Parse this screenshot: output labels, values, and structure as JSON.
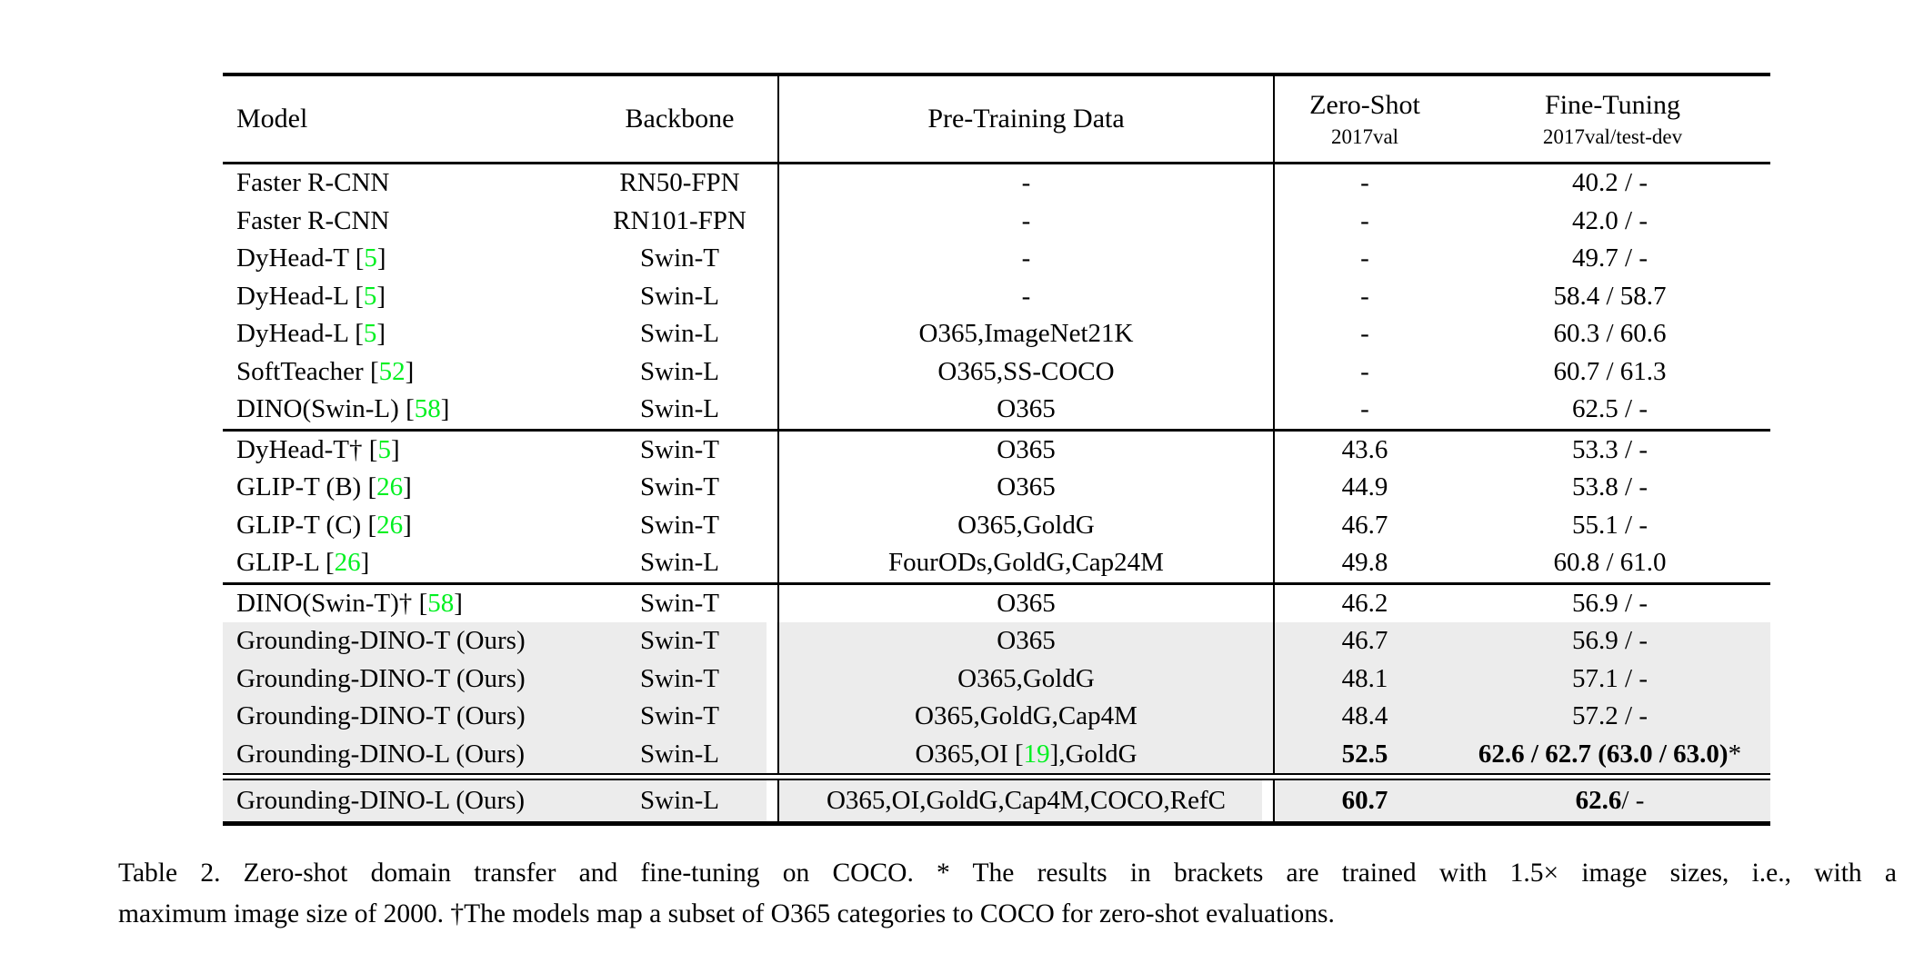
{
  "colors": {
    "row_highlight": "#ececec",
    "citation_green": "#00f020"
  },
  "table": {
    "header": {
      "model": "Model",
      "backbone": "Backbone",
      "pretrain": "Pre-Training Data",
      "zeroshot_line1": "Zero-Shot",
      "zeroshot_line2": "2017val",
      "finetune_line1": "Fine-Tuning",
      "finetune_line2": "2017val/test-dev"
    },
    "sections": [
      {
        "rows": [
          {
            "model": "Faster R-CNN",
            "backbone": "RN50-FPN",
            "pretrain": "-",
            "zeroshot": "-",
            "finetune": "40.2 / -",
            "highlight": false
          },
          {
            "model": "Faster R-CNN",
            "backbone": "RN101-FPN",
            "pretrain": "-",
            "zeroshot": "-",
            "finetune": "42.0 / -",
            "highlight": false
          },
          {
            "model": "DyHead-T [[5]]",
            "backbone": "Swin-T",
            "pretrain": "-",
            "zeroshot": "-",
            "finetune": "49.7 / -",
            "highlight": false
          },
          {
            "model": "DyHead-L [[5]]",
            "backbone": "Swin-L",
            "pretrain": "-",
            "zeroshot": "-",
            "finetune": "58.4 / 58.7",
            "highlight": false
          },
          {
            "model": "DyHead-L [[5]]",
            "backbone": "Swin-L",
            "pretrain": "O365,ImageNet21K",
            "zeroshot": "-",
            "finetune": "60.3 / 60.6",
            "highlight": false
          },
          {
            "model": "SoftTeacher [[52]]",
            "backbone": "Swin-L",
            "pretrain": "O365,SS-COCO",
            "zeroshot": "-",
            "finetune": "60.7 / 61.3",
            "highlight": false
          },
          {
            "model": "DINO(Swin-L) [[58]]",
            "backbone": "Swin-L",
            "pretrain": "O365",
            "zeroshot": "-",
            "finetune": "62.5 / -",
            "highlight": false
          }
        ]
      },
      {
        "rule_before": "single",
        "rows": [
          {
            "model": "DyHead-T† [[5]]",
            "backbone": "Swin-T",
            "pretrain": "O365",
            "zeroshot": "43.6",
            "finetune": "53.3 / -",
            "highlight": false
          },
          {
            "model": "GLIP-T (B) [[26]]",
            "backbone": "Swin-T",
            "pretrain": "O365",
            "zeroshot": "44.9",
            "finetune": "53.8 / -",
            "highlight": false
          },
          {
            "model": "GLIP-T (C) [[26]]",
            "backbone": "Swin-T",
            "pretrain": "O365,GoldG",
            "zeroshot": "46.7",
            "finetune": "55.1 / -",
            "highlight": false
          },
          {
            "model": "GLIP-L [[26]]",
            "backbone": "Swin-L",
            "pretrain": "FourODs,GoldG,Cap24M",
            "zeroshot": "49.8",
            "finetune": "60.8 / 61.0",
            "highlight": false
          }
        ]
      },
      {
        "rule_before": "single",
        "rows": [
          {
            "model": "DINO(Swin-T)† [[58]]",
            "backbone": "Swin-T",
            "pretrain": "O365",
            "zeroshot": "46.2",
            "finetune": "56.9 / -",
            "highlight": false
          },
          {
            "model": "Grounding-DINO-T (Ours)",
            "backbone": "Swin-T",
            "pretrain": "O365",
            "zeroshot": "46.7",
            "finetune": "56.9 / -",
            "highlight": true
          },
          {
            "model": "Grounding-DINO-T (Ours)",
            "backbone": "Swin-T",
            "pretrain": "O365,GoldG",
            "zeroshot": "48.1",
            "finetune": "57.1 / -",
            "highlight": true
          },
          {
            "model": "Grounding-DINO-T (Ours)",
            "backbone": "Swin-T",
            "pretrain": "O365,GoldG,Cap4M",
            "zeroshot": "48.4",
            "finetune": "57.2 / -",
            "highlight": true
          },
          {
            "model": "Grounding-DINO-L (Ours)",
            "backbone": "Swin-L",
            "pretrain": "O365,OI [[19]],GoldG",
            "zeroshot": "{b}52.5{/b}",
            "finetune": "{b}62.6 / 62.7 (63.0 / 63.0){/b}*",
            "highlight": true
          }
        ]
      },
      {
        "rule_before": "double",
        "tall": true,
        "rows": [
          {
            "model": "Grounding-DINO-L (Ours)",
            "backbone": "Swin-L",
            "pretrain": "O365,OI,GoldG,Cap4M,COCO,RefC",
            "zeroshot": "{b}60.7{/b}",
            "finetune": "{b}62.6{/b} / -",
            "highlight": true,
            "gap2": true
          }
        ]
      }
    ]
  },
  "caption": {
    "line1": "Table 2. Zero-shot domain transfer and fine-tuning on COCO. * The results in brackets are trained with 1.5× image sizes, i.e., with a",
    "line2": "maximum image size of 2000. †The models map a subset of O365 categories to COCO for zero-shot evaluations."
  }
}
